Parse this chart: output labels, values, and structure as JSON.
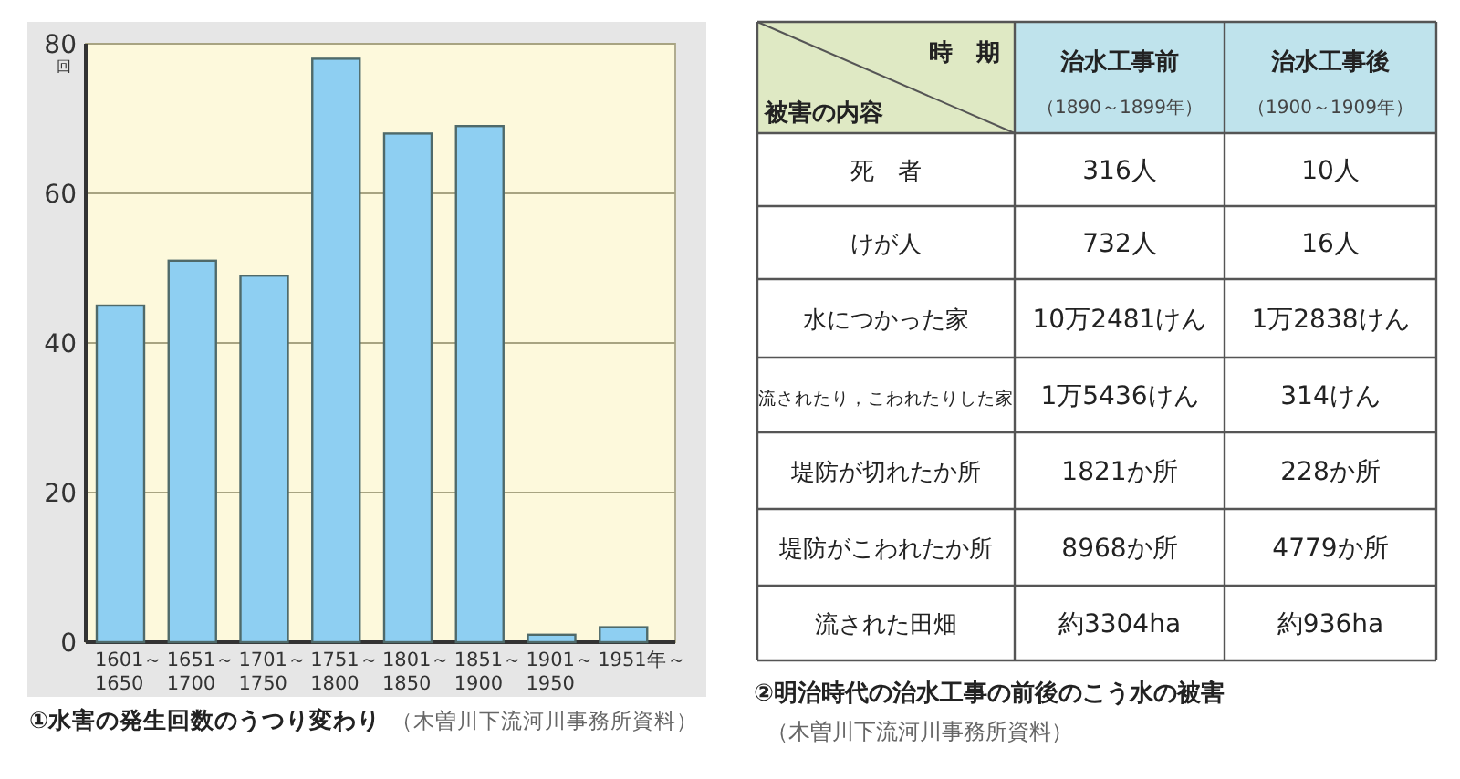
{
  "chart_data": [
    {
      "type": "bar",
      "title": "①水害の発生回数のうつり変わり",
      "ylabel": "回",
      "categories": [
        "1601～1650",
        "1651～1700",
        "1701～1750",
        "1751～1800",
        "1801～1850",
        "1851～1900",
        "1901～1950",
        "1951年～"
      ],
      "values": [
        45,
        51,
        49,
        78,
        68,
        69,
        1,
        2
      ],
      "color": "#8ecff2",
      "ylim": [
        0,
        80
      ],
      "yticks": [
        0,
        20,
        40,
        60,
        80
      ],
      "grid": "y",
      "annotations": [
        "（木曽川下流河川事務所資料）"
      ]
    },
    {
      "type": "other",
      "title": "②明治時代の治水工事の前後のこう水の被害",
      "annotations": [
        "時　期",
        "被害の内容",
        "治水工事前",
        "（1890～1899年）",
        "治水工事後",
        "（1900～1909年）",
        "死　者",
        "316人",
        "10人",
        "けが人",
        "732人",
        "16人",
        "水につかった家",
        "10万2481けん",
        "1万2838けん",
        "流されたり，こわれたりした家",
        "1万5436けん",
        "314けん",
        "堤防が切れたか所",
        "1821か所",
        "228か所",
        "堤防がこわれたか所",
        "8968か所",
        "4779か所",
        "流された田畑",
        "約3304ha",
        "約936ha",
        "（木曽川下流河川事務所資料）"
      ]
    }
  ]
}
